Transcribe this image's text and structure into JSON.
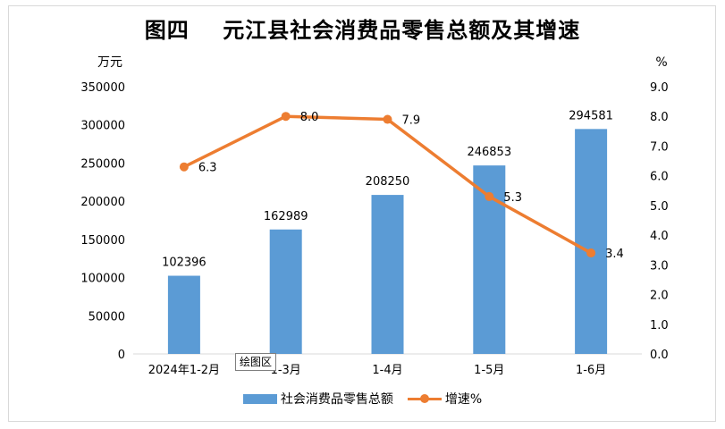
{
  "chart_data": {
    "type": "bar",
    "title": "图四    元江县社会消费品零售总额及其增速",
    "categories": [
      "2024年1-2月",
      "1-3月",
      "1-4月",
      "1-5月",
      "1-6月"
    ],
    "y_left_unit": "万元",
    "y_right_unit": "%",
    "y_left_ticks": [
      "0",
      "50000",
      "100000",
      "150000",
      "200000",
      "250000",
      "300000",
      "350000"
    ],
    "y_right_ticks": [
      "0.0",
      "1.0",
      "2.0",
      "3.0",
      "4.0",
      "5.0",
      "6.0",
      "7.0",
      "8.0",
      "9.0"
    ],
    "ylim_left": [
      0,
      350000
    ],
    "ylim_right": [
      0,
      9
    ],
    "series": [
      {
        "name": "社会消费品零售总额",
        "type": "bar",
        "axis": "left",
        "values": [
          102396,
          162989,
          208250,
          246853,
          294581
        ],
        "labels": [
          "102396",
          "162989",
          "208250",
          "246853",
          "294581"
        ],
        "color": "#5b9bd5"
      },
      {
        "name": "增速%",
        "type": "line",
        "axis": "right",
        "values": [
          6.3,
          8.0,
          7.9,
          5.3,
          3.4
        ],
        "labels": [
          "6.3",
          "8.0",
          "7.9",
          "5.3",
          "3.4"
        ],
        "color": "#ed7d31"
      }
    ],
    "grid": false,
    "legend_position": "bottom"
  },
  "tooltip_text": "绘图区"
}
